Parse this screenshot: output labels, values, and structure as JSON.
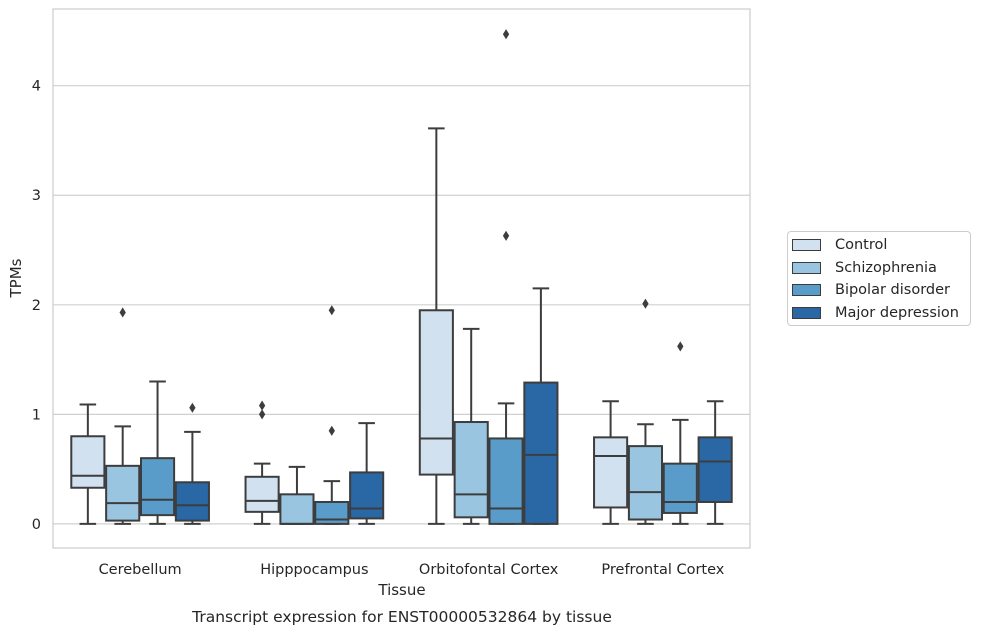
{
  "chart_data": {
    "type": "box",
    "title": "Transcript expression for ENST00000532864 by tissue",
    "xlabel": "Tissue",
    "ylabel": "TPMs",
    "ylim": [
      -0.22,
      4.7
    ],
    "yticks": [
      0,
      1,
      2,
      3,
      4
    ],
    "grid": "horizontal",
    "legend_position": "right",
    "categories": [
      "Cerebellum",
      "Hipppocampus",
      "Orbitofontal Cortex",
      "Prefrontal Cortex"
    ],
    "series": [
      {
        "name": "Control",
        "color": "#d1e1f0",
        "boxes": [
          {
            "whisker_low": 0.0,
            "q1": 0.33,
            "median": 0.44,
            "q3": 0.8,
            "whisker_high": 1.09,
            "outliers": []
          },
          {
            "whisker_low": 0.0,
            "q1": 0.11,
            "median": 0.21,
            "q3": 0.43,
            "whisker_high": 0.55,
            "outliers": [
              1.0,
              1.08
            ]
          },
          {
            "whisker_low": 0.0,
            "q1": 0.45,
            "median": 0.78,
            "q3": 1.95,
            "whisker_high": 3.61,
            "outliers": []
          },
          {
            "whisker_low": 0.0,
            "q1": 0.15,
            "median": 0.62,
            "q3": 0.79,
            "whisker_high": 1.12,
            "outliers": []
          }
        ]
      },
      {
        "name": "Schizophrenia",
        "color": "#9ac5e0",
        "boxes": [
          {
            "whisker_low": 0.0,
            "q1": 0.03,
            "median": 0.19,
            "q3": 0.53,
            "whisker_high": 0.89,
            "outliers": [
              1.93
            ]
          },
          {
            "whisker_low": 0.0,
            "q1": 0.0,
            "median": 0.0,
            "q3": 0.27,
            "whisker_high": 0.52,
            "outliers": []
          },
          {
            "whisker_low": 0.0,
            "q1": 0.06,
            "median": 0.27,
            "q3": 0.93,
            "whisker_high": 1.78,
            "outliers": []
          },
          {
            "whisker_low": 0.0,
            "q1": 0.04,
            "median": 0.29,
            "q3": 0.71,
            "whisker_high": 0.91,
            "outliers": [
              2.01
            ]
          }
        ]
      },
      {
        "name": "Bipolar disorder",
        "color": "#5a9cc9",
        "boxes": [
          {
            "whisker_low": 0.0,
            "q1": 0.08,
            "median": 0.22,
            "q3": 0.6,
            "whisker_high": 1.3,
            "outliers": []
          },
          {
            "whisker_low": 0.0,
            "q1": 0.0,
            "median": 0.04,
            "q3": 0.2,
            "whisker_high": 0.39,
            "outliers": [
              0.85,
              1.95
            ]
          },
          {
            "whisker_low": 0.0,
            "q1": 0.0,
            "median": 0.14,
            "q3": 0.78,
            "whisker_high": 1.1,
            "outliers": [
              2.63,
              4.47
            ]
          },
          {
            "whisker_low": 0.0,
            "q1": 0.1,
            "median": 0.2,
            "q3": 0.55,
            "whisker_high": 0.95,
            "outliers": [
              1.62
            ]
          }
        ]
      },
      {
        "name": "Major depression",
        "color": "#2a67a5",
        "boxes": [
          {
            "whisker_low": 0.0,
            "q1": 0.03,
            "median": 0.17,
            "q3": 0.38,
            "whisker_high": 0.84,
            "outliers": [
              1.06
            ]
          },
          {
            "whisker_low": 0.0,
            "q1": 0.05,
            "median": 0.14,
            "q3": 0.47,
            "whisker_high": 0.92,
            "outliers": []
          },
          {
            "whisker_low": 0.0,
            "q1": 0.0,
            "median": 0.63,
            "q3": 1.29,
            "whisker_high": 2.15,
            "outliers": []
          },
          {
            "whisker_low": 0.0,
            "q1": 0.2,
            "median": 0.57,
            "q3": 0.79,
            "whisker_high": 1.12,
            "outliers": []
          }
        ]
      }
    ]
  }
}
